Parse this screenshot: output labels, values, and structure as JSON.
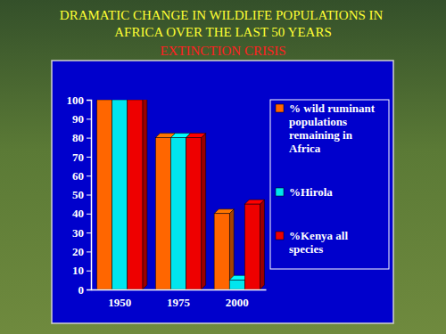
{
  "chart_data": {
    "type": "bar",
    "title": "DRAMATIC CHANGE IN WILDLIFE POPULATIONS IN AFRICA OVER THE LAST 50 YEARS",
    "subtitle": "EXTINCTION CRISIS",
    "categories": [
      "1950",
      "1975",
      "2000"
    ],
    "series": [
      {
        "name": "% wild ruminant populations remaining in Africa",
        "color": "#ff6600",
        "values": [
          100,
          80,
          40
        ]
      },
      {
        "name": "%Hirola",
        "color": "#00e5ee",
        "values": [
          100,
          80,
          5
        ]
      },
      {
        "name": "%Kenya all species",
        "color": "#ee0000",
        "values": [
          100,
          80,
          45
        ]
      }
    ],
    "ylim": [
      0,
      100
    ],
    "yticks": [
      0,
      10,
      20,
      30,
      40,
      50,
      60,
      70,
      80,
      90,
      100
    ],
    "grid": false,
    "legend": "right"
  }
}
